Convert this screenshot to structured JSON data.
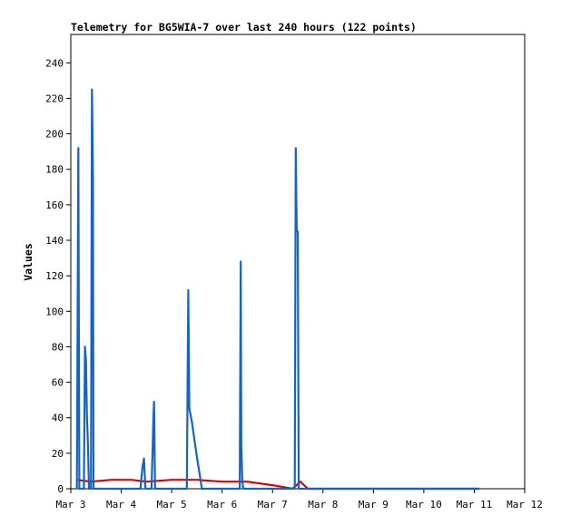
{
  "chart_data": {
    "type": "line",
    "title": "Telemetry for BG5WIA-7 over last 240 hours (122 points)",
    "xlabel": "",
    "ylabel": "Values",
    "x_ticks": [
      "Mar 3",
      "Mar 4",
      "Mar 5",
      "Mar 6",
      "Mar 7",
      "Mar 8",
      "Mar 9",
      "Mar 10",
      "Mar 11",
      "Mar 12"
    ],
    "xlim": [
      3,
      12
    ],
    "y_ticks": [
      0,
      20,
      40,
      60,
      80,
      100,
      120,
      140,
      160,
      180,
      200,
      220,
      240
    ],
    "ylim": [
      0,
      256
    ],
    "grid": false,
    "legend": "none",
    "series": [
      {
        "color": "#1565c0",
        "points": [
          [
            3.12,
            0
          ],
          [
            3.15,
            192
          ],
          [
            3.17,
            0
          ],
          [
            3.26,
            0
          ],
          [
            3.28,
            80
          ],
          [
            3.3,
            72
          ],
          [
            3.31,
            57
          ],
          [
            3.32,
            40
          ],
          [
            3.34,
            25
          ],
          [
            3.36,
            0
          ],
          [
            3.4,
            0
          ],
          [
            3.42,
            225
          ],
          [
            3.43,
            200
          ],
          [
            3.44,
            176
          ],
          [
            3.45,
            0
          ],
          [
            4.38,
            0
          ],
          [
            4.42,
            12
          ],
          [
            4.45,
            17
          ],
          [
            4.48,
            0
          ],
          [
            4.6,
            0
          ],
          [
            4.62,
            20
          ],
          [
            4.64,
            42
          ],
          [
            4.65,
            49
          ],
          [
            4.67,
            0
          ],
          [
            5.3,
            0
          ],
          [
            5.33,
            112
          ],
          [
            5.35,
            45
          ],
          [
            5.4,
            38
          ],
          [
            5.5,
            18
          ],
          [
            5.6,
            0
          ],
          [
            6.35,
            0
          ],
          [
            6.37,
            128
          ],
          [
            6.38,
            25
          ],
          [
            6.4,
            5
          ],
          [
            6.42,
            0
          ],
          [
            7.44,
            0
          ],
          [
            7.46,
            192
          ],
          [
            7.48,
            145
          ],
          [
            7.5,
            145
          ],
          [
            7.52,
            0
          ],
          [
            11.1,
            0
          ]
        ]
      },
      {
        "color": "#e00000",
        "points": [
          [
            3.12,
            5
          ],
          [
            3.4,
            4
          ],
          [
            3.8,
            5
          ],
          [
            4.2,
            5
          ],
          [
            4.5,
            4
          ],
          [
            5.0,
            5
          ],
          [
            5.5,
            5
          ],
          [
            6.0,
            4
          ],
          [
            6.5,
            4
          ],
          [
            7.0,
            2
          ],
          [
            7.4,
            0
          ],
          [
            7.55,
            4
          ],
          [
            7.7,
            0
          ],
          [
            11.1,
            0
          ]
        ]
      }
    ]
  }
}
